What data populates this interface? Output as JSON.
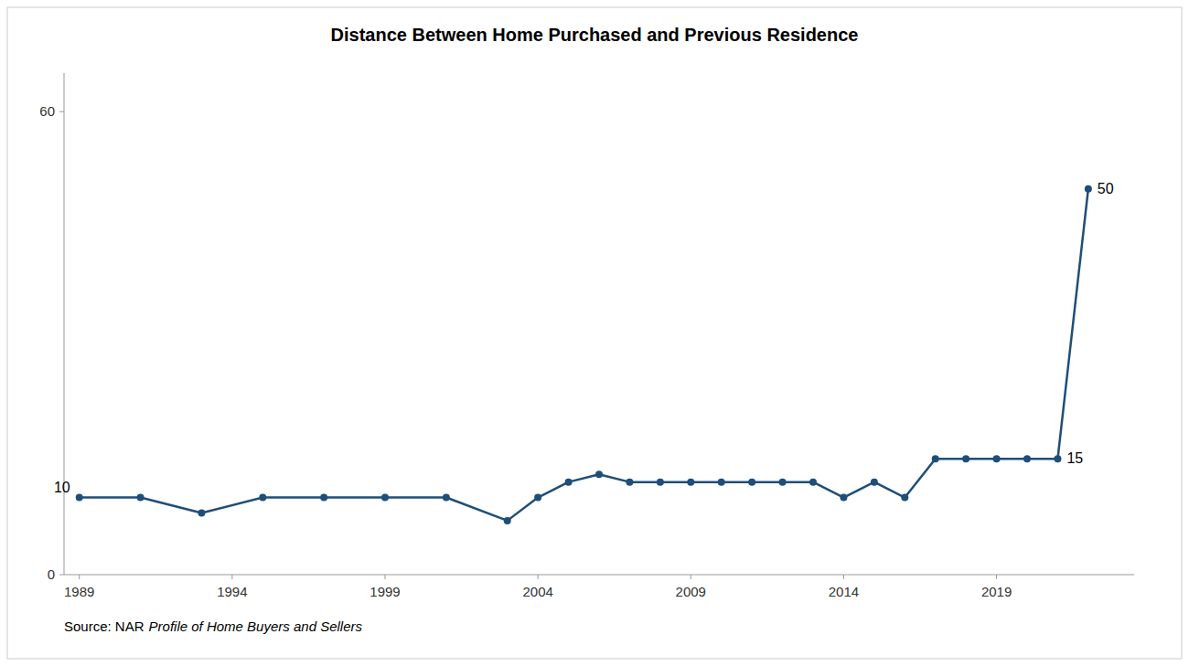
{
  "chart_data": {
    "type": "line",
    "title": "Distance Between Home Purchased and Previous Residence",
    "x": [
      1989,
      1991,
      1993,
      1995,
      1997,
      1999,
      2001,
      2003,
      2004,
      2005,
      2006,
      2007,
      2008,
      2009,
      2010,
      2011,
      2012,
      2013,
      2014,
      2015,
      2016,
      2017,
      2018,
      2019,
      2020,
      2021,
      2022
    ],
    "values": [
      10,
      10,
      8,
      10,
      10,
      10,
      10,
      7,
      10,
      12,
      13,
      12,
      12,
      12,
      12,
      12,
      12,
      12,
      10,
      12,
      10,
      15,
      15,
      15,
      15,
      15,
      50
    ],
    "color": "#1F4E79",
    "marker": "circle",
    "xlim": [
      1988.5,
      2023.5
    ],
    "xticks": [
      1989,
      1994,
      1999,
      2004,
      2009,
      2014,
      2019
    ],
    "ylim": [
      0,
      65
    ],
    "yticks": [
      0,
      60
    ],
    "grid": false,
    "annotations": [
      {
        "x": 1989,
        "y": 10,
        "text": "10"
      },
      {
        "x": 2021,
        "y": 15,
        "text": "15"
      },
      {
        "x": 2022,
        "y": 50,
        "text": "50"
      }
    ],
    "source": [
      "Source: NAR",
      "Profile of Home Buyers and Sellers"
    ]
  }
}
